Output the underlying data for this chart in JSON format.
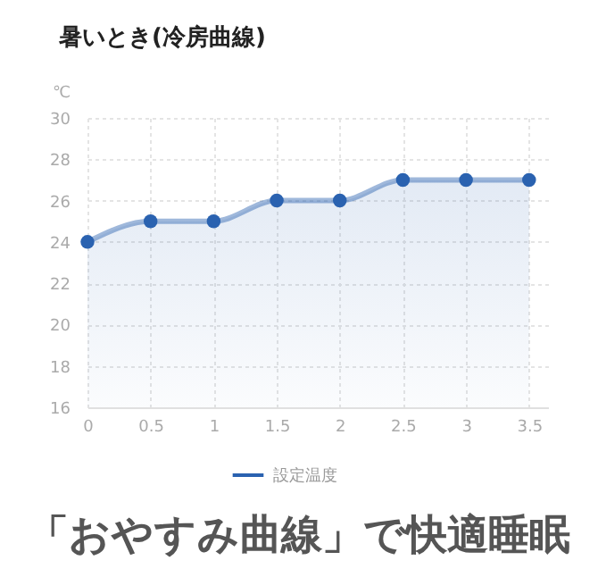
{
  "chart_data": {
    "type": "area",
    "title": "暑いとき(冷房曲線)",
    "ylabel": "℃",
    "annotations": [
      "「おやすみ曲線」で快適睡眠"
    ],
    "x": [
      0,
      0.5,
      1,
      1.5,
      2,
      2.5,
      3,
      3.5
    ],
    "series": [
      {
        "name": "設定温度",
        "color": "#2a62b0",
        "values": [
          24,
          25,
          25,
          26,
          26,
          27,
          27,
          27
        ]
      }
    ],
    "xlim": [
      0,
      3.65
    ],
    "xticks": [
      0,
      0.5,
      1,
      1.5,
      2,
      2.5,
      3,
      3.5
    ],
    "ylim": [
      16,
      30
    ],
    "yticks": [
      16,
      18,
      20,
      22,
      24,
      26,
      28,
      30
    ],
    "grid": true,
    "legend": "bottom",
    "marker": "circle",
    "line_style": "solid"
  }
}
